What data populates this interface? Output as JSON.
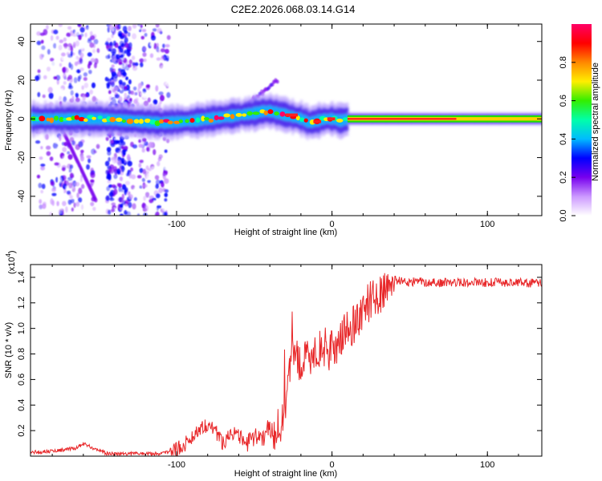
{
  "title": "C2E2.2026.068.03.14.G14",
  "chart_data": [
    {
      "type": "heatmap",
      "title": "C2E2.2026.068.03.14.G14",
      "xlabel": "Height of straight line (km)",
      "ylabel": "Frequency (Hz)",
      "xlim": [
        -194,
        135
      ],
      "ylim": [
        -50,
        49
      ],
      "xticks": [
        -100,
        0,
        100
      ],
      "xtick_labels": [
        "-100",
        "0",
        "100"
      ],
      "yticks": [
        -40,
        -20,
        0,
        20,
        40
      ],
      "ytick_labels": [
        "-40",
        "-20",
        "0",
        "20",
        "40"
      ],
      "trace": {
        "name": "dominant frequency ridge",
        "x": [
          -190,
          -170,
          -150,
          -130,
          -110,
          -90,
          -80,
          -70,
          -60,
          -50,
          -45,
          -40,
          -35,
          -30,
          -25,
          -20,
          -15,
          -10,
          -5,
          0,
          5,
          10,
          20,
          60,
          100,
          135
        ],
        "y": [
          0,
          0,
          0,
          -1,
          -2,
          -1,
          0,
          1,
          2,
          3,
          4,
          4,
          3,
          2,
          1,
          0,
          -2,
          -1,
          0,
          0,
          -1,
          0,
          0,
          0,
          0,
          0
        ]
      },
      "colorbar": {
        "label": "Normalized spectral amplitude",
        "range": [
          0,
          1
        ],
        "ticks": [
          "0.0",
          "0.2",
          "0.4",
          "0.6",
          "0.8"
        ],
        "colors": [
          "#ffffff",
          "#cc99ff",
          "#7700ee",
          "#0000ff",
          "#00bbff",
          "#00ffaa",
          "#33ee00",
          "#ffee00",
          "#ff8800",
          "#ff0000",
          "#ff0066"
        ]
      }
    },
    {
      "type": "line",
      "xlabel": "Height of straight line (km)",
      "ylabel": "SNR (10 * v/v)",
      "scale_label": "(x10",
      "scale_exponent": "4",
      "xlim": [
        -194,
        135
      ],
      "ylim": [
        0,
        1.5
      ],
      "xticks": [
        -100,
        0,
        100
      ],
      "xtick_labels": [
        "-100",
        "0",
        "100"
      ],
      "yticks": [
        0.2,
        0.4,
        0.6,
        0.8,
        1.0,
        1.2,
        1.4
      ],
      "ytick_labels": [
        "0.2",
        "0.4",
        "0.6",
        "0.8",
        "1.0",
        "1.2",
        "1.4"
      ],
      "series": [
        {
          "name": "SNR",
          "color": "#e8282a",
          "x": [
            -194,
            -180,
            -165,
            -160,
            -155,
            -145,
            -130,
            -110,
            -100,
            -95,
            -90,
            -85,
            -80,
            -75,
            -70,
            -65,
            -60,
            -55,
            -50,
            -45,
            -40,
            -35,
            -30,
            -25,
            -20,
            -15,
            -10,
            -5,
            0,
            5,
            10,
            15,
            20,
            25,
            30,
            35,
            40,
            45,
            50,
            55,
            60,
            80,
            100,
            120,
            135
          ],
          "y": [
            0.03,
            0.04,
            0.06,
            0.1,
            0.07,
            0.02,
            0.02,
            0.02,
            0.05,
            0.09,
            0.15,
            0.22,
            0.25,
            0.2,
            0.1,
            0.2,
            0.15,
            0.1,
            0.13,
            0.16,
            0.22,
            0.1,
            0.4,
            0.85,
            0.7,
            0.78,
            0.82,
            0.85,
            0.82,
            0.92,
            0.98,
            1.05,
            1.15,
            1.22,
            1.27,
            1.3,
            1.38,
            1.37,
            1.36,
            1.37,
            1.36,
            1.36,
            1.36,
            1.36,
            1.35
          ]
        }
      ]
    }
  ]
}
